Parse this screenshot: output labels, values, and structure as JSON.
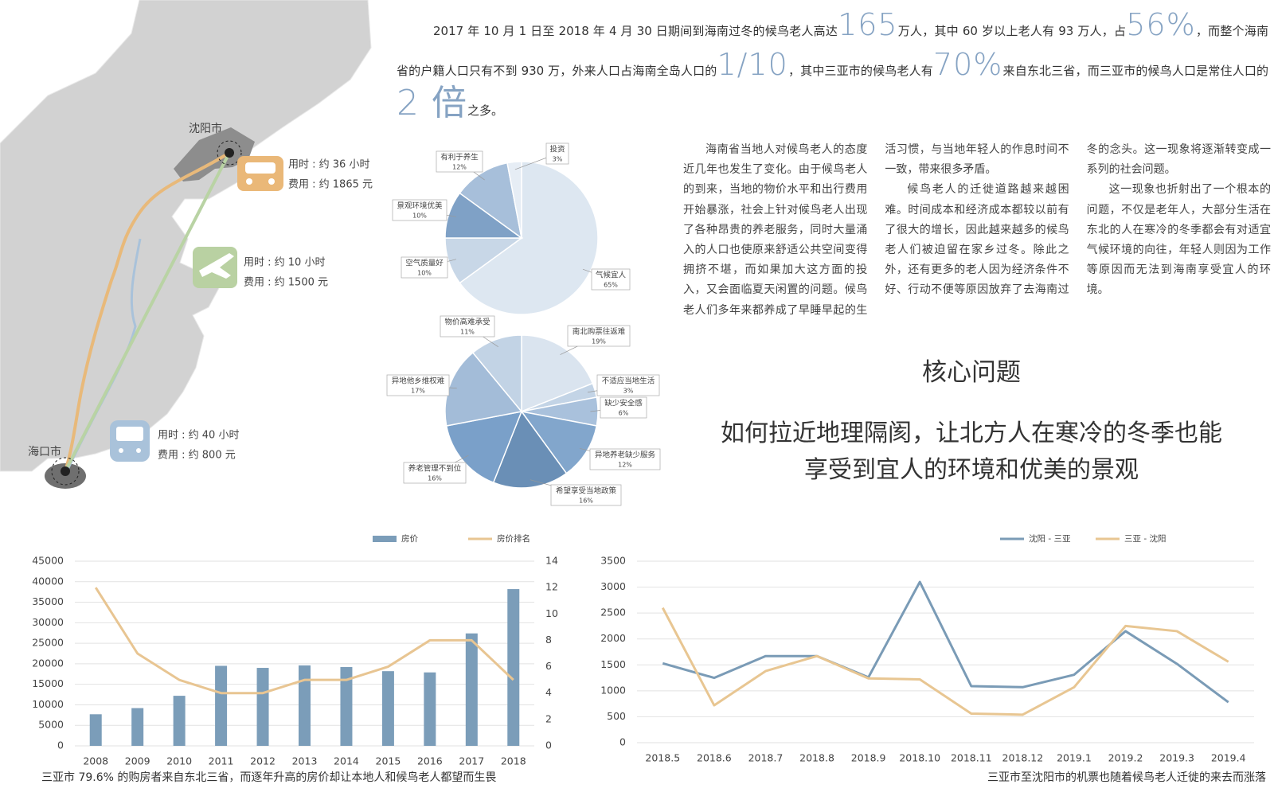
{
  "article": {
    "intro": [
      "2017 年 10 月 1 日至 2018 年 4 月 30 日期间到海南过冬的候鸟老人高达",
      "165",
      "万人，其中 60 岁以上老人有 93 万人，占",
      "56%",
      "，而整个海南省的户籍人口只有不到 930 万，外来人口占海南全岛人口的",
      "1/10",
      "，其中三亚市的候鸟老人有",
      "70%",
      "来自东北三省，而三亚市的候鸟人口是常住人口的",
      "2 倍",
      "之多。"
    ],
    "columns": [
      "海南省当地人对候鸟老人的态度近几年也发生了变化。由于候鸟老人的到来，当地的物价水平和出行费用开始暴涨，社会上针对候鸟老人出现了各种昂贵的养老服务，同时大量涌入的人口也使原来舒适公共空间变得拥挤不堪，而如果加大这方面的投入，又会面临夏天闲置的问题。候鸟老人们多年来都养成了早睡早起的生活习惯，与当地年轻人的作息时间不一致，带来很多矛盾。",
      "候鸟老人的迁徙道路越来越困难。时间成本和经济成本都较以前有了很大的增长，因此越来越多的候鸟老人们被迫留在家乡过冬。除此之外，还有更多的老人因为经济条件不好、行动不便等原因放弃了去海南过冬的念头。这一现象将逐渐转变成一系列的社会问题。",
      "这一现象也折射出了一个根本的问题，不仅是老年人，大部分生活在东北的人在寒冷的冬季都会有对适宜气候环境的向往，年轻人则因为工作等原因而无法到海南享受宜人的环境。"
    ],
    "core_title": "核心问题",
    "core_question": "如何拉近地理隔阂，让北方人在寒冷的冬季也能享受到宜人的环境和优美的景观"
  },
  "map": {
    "cities": [
      "沈阳市",
      "海口市"
    ],
    "routes": [
      {
        "time": "用时 : 约 36 小时",
        "cost": "费用 : 约 1865 元"
      },
      {
        "time": "用时 : 约 10 小时",
        "cost": "费用 : 约 1500 元"
      },
      {
        "time": "用时 : 约 40 小时",
        "cost": "费用 : 约 800 元"
      }
    ]
  },
  "chart_data": [
    {
      "type": "pie",
      "categories": [
        "气候宜人",
        "空气质量好",
        "景观环境优美",
        "有利于养生",
        "投资"
      ],
      "values": [
        65,
        10,
        10,
        12,
        3
      ],
      "value_labels": [
        "65%",
        "10%",
        "10%",
        "12%",
        "3%"
      ],
      "colors": [
        "#dde7f1",
        "#c8d7e7",
        "#7fa1c6",
        "#a7bfda",
        "#e6edf5"
      ]
    },
    {
      "type": "pie",
      "categories": [
        "南北购票往返难",
        "不适应当地生活",
        "缺少安全感",
        "异地养老缺少服务",
        "希望享受当地政策",
        "养老管理不到位",
        "异地他乡维权难",
        "物价高难承受"
      ],
      "values": [
        19,
        3,
        6,
        12,
        16,
        16,
        17,
        11
      ],
      "value_labels": [
        "19%",
        "3%",
        "6%",
        "12%",
        "16%",
        "16%",
        "17%",
        "11%"
      ],
      "colors": [
        "#dae4ef",
        "#c3d4e6",
        "#a9c1dc",
        "#82a6cc",
        "#6a8fb6",
        "#7aa0c9",
        "#a3bcd8",
        "#c2d3e5"
      ]
    },
    {
      "type": "bar",
      "categories": [
        "2008",
        "2009",
        "2010",
        "2011",
        "2012",
        "2013",
        "2014",
        "2015",
        "2016",
        "2017",
        "2018"
      ],
      "caption": "三亚市 79.6% 的购房者来自东北三省，而逐年升高的房价却让本地人和候鸟老人都望而生畏",
      "series": [
        {
          "name": "房价",
          "color": "#7b9db9",
          "values": [
            7700,
            9200,
            12200,
            19500,
            19000,
            19600,
            19200,
            18200,
            17900,
            27400,
            38200
          ]
        },
        {
          "name": "房价排名",
          "color": "#e8c592",
          "type": "line",
          "axis": "y2",
          "values": [
            12,
            7,
            5,
            4,
            4,
            5,
            5,
            6,
            8,
            8,
            5
          ]
        }
      ],
      "ylim": [
        0,
        45000
      ],
      "yticks": [
        0,
        5000,
        10000,
        15000,
        20000,
        25000,
        30000,
        35000,
        40000,
        45000
      ],
      "y2lim": [
        0,
        14
      ],
      "y2ticks": [
        0,
        2,
        4,
        6,
        8,
        10,
        12,
        14
      ],
      "grid": true
    },
    {
      "type": "line",
      "categories": [
        "2018.5",
        "2018.6",
        "2018.7",
        "2018.8",
        "2018.9",
        "2018.10",
        "2018.11",
        "2018.12",
        "2019.1",
        "2019.2",
        "2019.3",
        "2019.4"
      ],
      "caption": "三亚市至沈阳市的机票也随着候鸟老人迁徙的来去而涨落",
      "series": [
        {
          "name": "沈阳 - 三亚",
          "color": "#7a9bb6",
          "values": [
            1530,
            1250,
            1670,
            1670,
            1260,
            3100,
            1090,
            1070,
            1310,
            2150,
            1520,
            780
          ]
        },
        {
          "name": "三亚 - 沈阳",
          "color": "#e8c692",
          "values": [
            2600,
            720,
            1380,
            1670,
            1240,
            1220,
            560,
            540,
            1070,
            2250,
            2150,
            1560
          ]
        }
      ],
      "ylim": [
        0,
        3500
      ],
      "yticks": [
        0,
        500,
        1000,
        1500,
        2000,
        2500,
        3000,
        3500
      ],
      "grid": true
    }
  ]
}
